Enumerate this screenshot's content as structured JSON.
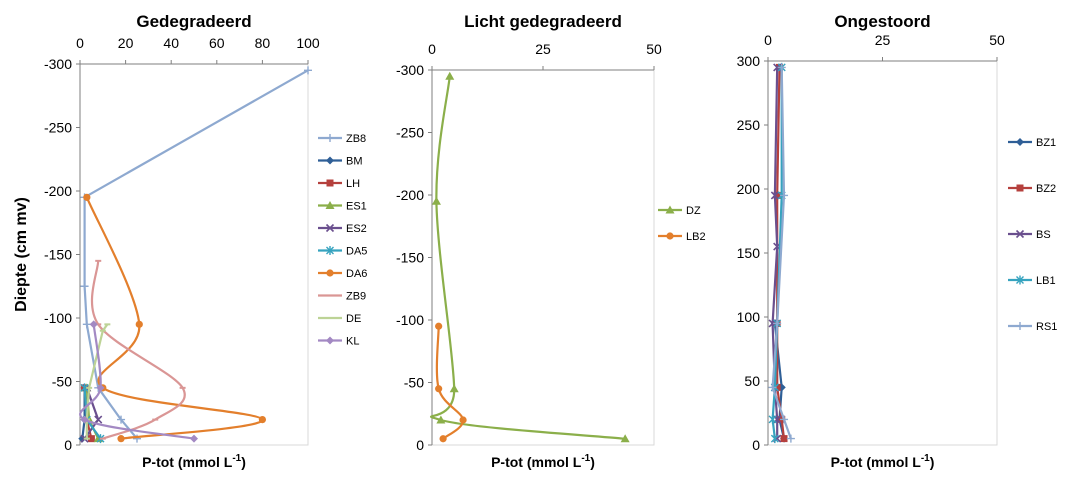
{
  "chart_data": [
    {
      "type": "line",
      "title": "Gedegradeerd",
      "xlabel": "P-tot (mmol L-1)",
      "xlabel_main": "P-tot (mmol L",
      "xlabel_sup": "-1",
      "xlabel_end": ")",
      "ylabel": "Diepte (cm mv)",
      "xlim": [
        0,
        100
      ],
      "ylim": [
        -300,
        0
      ],
      "xticks": [
        0,
        20,
        40,
        60,
        80,
        100
      ],
      "yticks": [
        0,
        -50,
        -100,
        -150,
        -200,
        -250,
        -300
      ],
      "series": [
        {
          "name": "ZB8",
          "color": "#8EA9D0",
          "marker": "plus",
          "smooth": false,
          "points": [
            [
              25,
              -5
            ],
            [
              18,
              -20
            ],
            [
              8,
              -45
            ],
            [
              3,
              -95
            ],
            [
              2,
              -125
            ],
            [
              2,
              -195
            ],
            [
              100,
              -295
            ]
          ]
        },
        {
          "name": "BM",
          "color": "#2F5F97",
          "marker": "diamond",
          "smooth": false,
          "points": [
            [
              1,
              -5
            ],
            [
              2,
              -20
            ],
            [
              2,
              -45
            ]
          ]
        },
        {
          "name": "LH",
          "color": "#B5403D",
          "marker": "square",
          "smooth": false,
          "points": [
            [
              5,
              -5
            ],
            [
              3,
              -20
            ],
            [
              2,
              -45
            ]
          ]
        },
        {
          "name": "ES1",
          "color": "#8BAF4A",
          "marker": "triangle",
          "smooth": false,
          "points": [
            [
              8,
              -5
            ],
            [
              4,
              -20
            ],
            [
              3,
              -45
            ]
          ]
        },
        {
          "name": "ES2",
          "color": "#6A4F8E",
          "marker": "x",
          "smooth": false,
          "points": [
            [
              2,
              -5
            ],
            [
              8,
              -20
            ],
            [
              3,
              -45
            ]
          ]
        },
        {
          "name": "DA5",
          "color": "#36A3BF",
          "marker": "star",
          "smooth": false,
          "points": [
            [
              9,
              -5
            ],
            [
              3,
              -20
            ],
            [
              2,
              -45
            ]
          ]
        },
        {
          "name": "DA6",
          "color": "#E37F2C",
          "marker": "circle",
          "smooth": true,
          "points": [
            [
              18,
              -5
            ],
            [
              80,
              -20
            ],
            [
              10,
              -45
            ],
            [
              26,
              -95
            ],
            [
              3,
              -195
            ]
          ]
        },
        {
          "name": "ZB9",
          "color": "#DA9695",
          "marker": "dash",
          "smooth": true,
          "points": [
            [
              10,
              -5
            ],
            [
              33,
              -20
            ],
            [
              45,
              -45
            ],
            [
              8,
              -95
            ],
            [
              8,
              -145
            ]
          ]
        },
        {
          "name": "DE",
          "color": "#BDD396",
          "marker": "dash",
          "smooth": false,
          "points": [
            [
              3,
              -5
            ],
            [
              3,
              -20
            ],
            [
              4,
              -45
            ],
            [
              10,
              -90
            ],
            [
              12,
              -95
            ]
          ]
        },
        {
          "name": "KL",
          "color": "#A389C3",
          "marker": "diamond",
          "smooth": true,
          "points": [
            [
              50,
              -5
            ],
            [
              2,
              -20
            ],
            [
              9,
              -45
            ],
            [
              6,
              -95
            ]
          ]
        }
      ]
    },
    {
      "type": "line",
      "title": "Licht gedegradeerd",
      "xlabel": "P-tot (mmol L-1)",
      "xlabel_main": "P-tot (mmol L",
      "xlabel_sup": "-1",
      "xlabel_end": ")",
      "xlim": [
        0,
        50
      ],
      "ylim": [
        -300,
        0
      ],
      "xticks": [
        0,
        25,
        50
      ],
      "yticks": [
        0,
        -50,
        -100,
        -150,
        -200,
        -250,
        -300
      ],
      "series": [
        {
          "name": "DZ",
          "color": "#8BAF4A",
          "marker": "triangle",
          "smooth": true,
          "points": [
            [
              43.5,
              -5
            ],
            [
              2,
              -20
            ],
            [
              5,
              -45
            ],
            [
              1,
              -195
            ],
            [
              4,
              -295
            ]
          ]
        },
        {
          "name": "LB2",
          "color": "#E37F2C",
          "marker": "circle",
          "smooth": true,
          "points": [
            [
              2.5,
              -5
            ],
            [
              7,
              -20
            ],
            [
              1.5,
              -45
            ],
            [
              1.5,
              -95
            ]
          ]
        }
      ]
    },
    {
      "type": "line",
      "title": "Ongestoord",
      "xlabel": "P-tot (mmol L-1)",
      "xlabel_main": "P-tot (mmol L",
      "xlabel_sup": "-1",
      "xlabel_end": ")",
      "xlim": [
        0,
        50
      ],
      "ylim": [
        300,
        0
      ],
      "xticks": [
        0,
        25,
        50
      ],
      "yticks": [
        0,
        50,
        100,
        150,
        200,
        250,
        300
      ],
      "series": [
        {
          "name": "BZ1",
          "color": "#2F5F97",
          "marker": "diamond",
          "smooth": false,
          "points": [
            [
              3.5,
              5
            ],
            [
              2.5,
              20
            ],
            [
              3,
              45
            ],
            [
              1.5,
              95
            ]
          ]
        },
        {
          "name": "BZ2",
          "color": "#B5403D",
          "marker": "square",
          "smooth": false,
          "points": [
            [
              3.5,
              5
            ],
            [
              3,
              20
            ],
            [
              2,
              45
            ],
            [
              2,
              95
            ],
            [
              2,
              195
            ],
            [
              2.5,
              295
            ]
          ]
        },
        {
          "name": "BS",
          "color": "#6A4F8E",
          "marker": "x",
          "smooth": false,
          "points": [
            [
              2,
              5
            ],
            [
              2,
              20
            ],
            [
              1.5,
              45
            ],
            [
              1,
              95
            ],
            [
              2,
              155
            ],
            [
              1.5,
              195
            ],
            [
              2,
              295
            ]
          ]
        },
        {
          "name": "LB1",
          "color": "#36A3BF",
          "marker": "star",
          "smooth": false,
          "points": [
            [
              1.5,
              5
            ],
            [
              1,
              20
            ],
            [
              1.5,
              45
            ],
            [
              2,
              95
            ],
            [
              3,
              195
            ],
            [
              3,
              295
            ]
          ]
        },
        {
          "name": "RS1",
          "color": "#8EA9D0",
          "marker": "plus",
          "smooth": false,
          "points": [
            [
              5,
              5
            ],
            [
              3.5,
              20
            ],
            [
              1,
              45
            ],
            [
              2,
              95
            ],
            [
              3.5,
              195
            ],
            [
              3,
              295
            ]
          ]
        }
      ]
    }
  ]
}
